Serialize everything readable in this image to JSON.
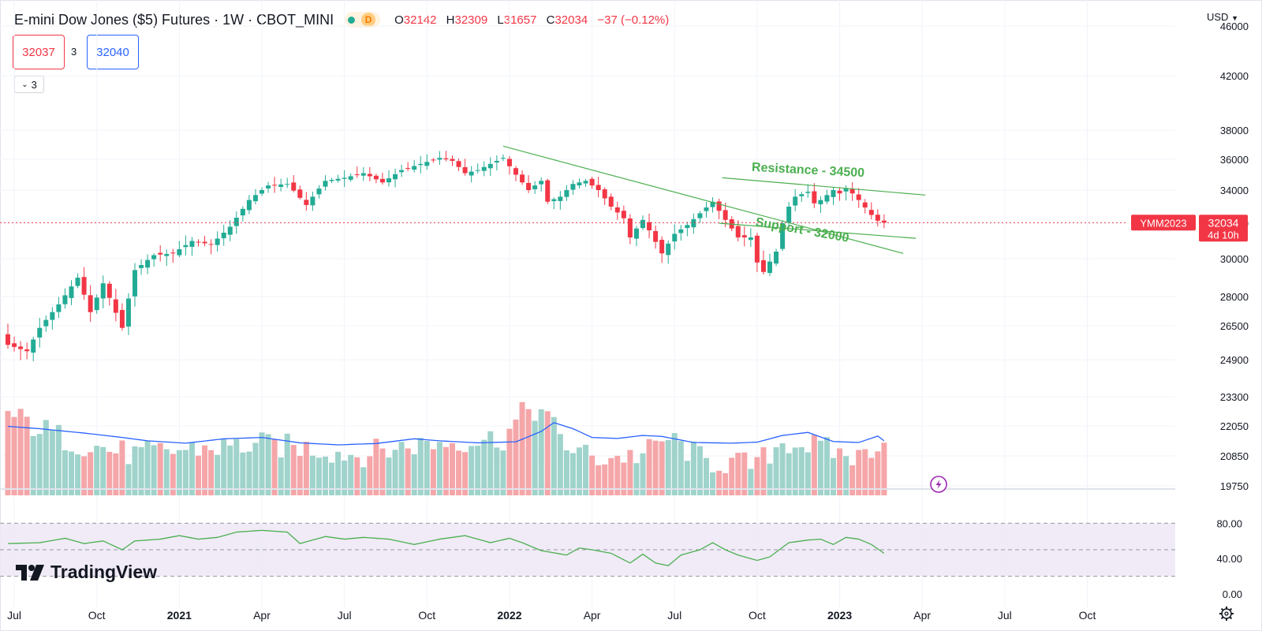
{
  "header": {
    "title": "E-mini Dow Jones ($5) Futures · 1W · CBOT_MINI",
    "status_badge": "D",
    "ohlc": [
      {
        "key": "O",
        "value": "32142"
      },
      {
        "key": "H",
        "value": "32309"
      },
      {
        "key": "L",
        "value": "31657"
      },
      {
        "key": "C",
        "value": "32034"
      },
      {
        "key": "",
        "value": "−37 (−0.12%)"
      }
    ],
    "sell_price": "32037",
    "spread": "3",
    "buy_price": "32040",
    "indicators_toggle": "3"
  },
  "currency": "USD",
  "brand": {
    "name": "TradingView"
  },
  "colors": {
    "up": "#22ab94",
    "down": "#f23645",
    "up_vol": "#9fd3cb",
    "down_vol": "#f5a6a9",
    "ma": "#2962ff",
    "trend": "#4caf50",
    "rsi": "#4caf50"
  },
  "price_label": {
    "symbol": "YMM2023",
    "price": "32034",
    "countdown": "4d 10h"
  },
  "chart_data": [
    {
      "type": "candlestick",
      "title": "E-mini Dow Jones ($5) Futures",
      "timeframe": "1W",
      "y_ticks": [
        19750,
        20850,
        22050,
        23300,
        24900,
        26500,
        28000,
        30000,
        32000,
        34000,
        36000,
        38000,
        42000,
        46000
      ],
      "y_tick_labels": [
        "19750",
        "20850",
        "22050",
        "23300",
        "24900",
        "26500",
        "28000",
        "30000",
        "32000",
        "34000",
        "36000",
        "38000",
        "42000",
        "46000"
      ],
      "x_ticks": [
        {
          "label": "Jul",
          "i": 1
        },
        {
          "label": "Oct",
          "i": 14
        },
        {
          "label": "2021",
          "i": 27,
          "bold": true
        },
        {
          "label": "Apr",
          "i": 40
        },
        {
          "label": "Jul",
          "i": 53
        },
        {
          "label": "Oct",
          "i": 66
        },
        {
          "label": "2022",
          "i": 79,
          "bold": true
        },
        {
          "label": "Apr",
          "i": 92
        },
        {
          "label": "Jul",
          "i": 105
        },
        {
          "label": "Oct",
          "i": 118
        },
        {
          "label": "2023",
          "i": 131,
          "bold": true
        },
        {
          "label": "Apr",
          "i": 144
        },
        {
          "label": "Jul",
          "i": 157
        },
        {
          "label": "Oct",
          "i": 170
        }
      ],
      "close_anchors": [
        [
          0,
          25600
        ],
        [
          3,
          25300
        ],
        [
          5,
          26400
        ],
        [
          8,
          27600
        ],
        [
          11,
          29000
        ],
        [
          13,
          27200
        ],
        [
          15,
          28700
        ],
        [
          18,
          26400
        ],
        [
          20,
          29400
        ],
        [
          23,
          30200
        ],
        [
          26,
          30300
        ],
        [
          29,
          31000
        ],
        [
          32,
          30800
        ],
        [
          35,
          31800
        ],
        [
          38,
          33400
        ],
        [
          41,
          34300
        ],
        [
          44,
          34400
        ],
        [
          47,
          33100
        ],
        [
          50,
          34600
        ],
        [
          53,
          34800
        ],
        [
          56,
          35100
        ],
        [
          59,
          34500
        ],
        [
          62,
          35300
        ],
        [
          65,
          35700
        ],
        [
          68,
          36100
        ],
        [
          70,
          35900
        ],
        [
          72,
          35100
        ],
        [
          74,
          35300
        ],
        [
          76,
          35700
        ],
        [
          78,
          36100
        ],
        [
          80,
          35000
        ],
        [
          82,
          34000
        ],
        [
          84,
          34600
        ],
        [
          85,
          33300
        ],
        [
          87,
          33600
        ],
        [
          89,
          34400
        ],
        [
          91,
          34600
        ],
        [
          93,
          34000
        ],
        [
          95,
          33000
        ],
        [
          97,
          32300
        ],
        [
          98,
          31200
        ],
        [
          100,
          32200
        ],
        [
          101,
          31600
        ],
        [
          103,
          30300
        ],
        [
          105,
          31400
        ],
        [
          107,
          31900
        ],
        [
          109,
          32600
        ],
        [
          111,
          33300
        ],
        [
          113,
          32200
        ],
        [
          115,
          31200
        ],
        [
          117,
          31200
        ],
        [
          118,
          29800
        ],
        [
          119,
          29300
        ],
        [
          121,
          30400
        ],
        [
          122,
          32000
        ],
        [
          123,
          33000
        ],
        [
          124,
          33600
        ],
        [
          126,
          33900
        ],
        [
          127,
          33200
        ],
        [
          128,
          33400
        ],
        [
          130,
          34000
        ],
        [
          131,
          33800
        ],
        [
          132,
          34100
        ],
        [
          133,
          33800
        ],
        [
          134,
          33400
        ],
        [
          136,
          32500
        ],
        [
          137,
          32150
        ],
        [
          138,
          32034
        ]
      ],
      "volume_anchors": [
        [
          0,
          24
        ],
        [
          10,
          16
        ],
        [
          20,
          12
        ],
        [
          30,
          14
        ],
        [
          40,
          15
        ],
        [
          48,
          14
        ],
        [
          55,
          12
        ],
        [
          64,
          15
        ],
        [
          70,
          16
        ],
        [
          78,
          17
        ],
        [
          82,
          26
        ],
        [
          84,
          25
        ],
        [
          88,
          15
        ],
        [
          92,
          11
        ],
        [
          100,
          12
        ],
        [
          104,
          17
        ],
        [
          110,
          10
        ],
        [
          118,
          9
        ],
        [
          122,
          16
        ],
        [
          126,
          15
        ],
        [
          132,
          12
        ],
        [
          134,
          11
        ],
        [
          137,
          16
        ]
      ],
      "ma_anchors": [
        [
          0,
          20.5
        ],
        [
          5,
          19.8
        ],
        [
          12,
          18.5
        ],
        [
          18,
          17.2
        ],
        [
          22,
          16.2
        ],
        [
          28,
          15.5
        ],
        [
          34,
          16.8
        ],
        [
          40,
          17.2
        ],
        [
          46,
          15.6
        ],
        [
          52,
          15.0
        ],
        [
          58,
          15.4
        ],
        [
          64,
          16.8
        ],
        [
          68,
          16.2
        ],
        [
          74,
          15.6
        ],
        [
          80,
          15.9
        ],
        [
          84,
          19.0
        ],
        [
          86,
          21.6
        ],
        [
          89,
          19.8
        ],
        [
          92,
          17.2
        ],
        [
          96,
          16.9
        ],
        [
          100,
          17.8
        ],
        [
          103,
          17.5
        ],
        [
          108,
          15.7
        ],
        [
          114,
          15.5
        ],
        [
          118,
          15.8
        ],
        [
          122,
          17.8
        ],
        [
          126,
          18.7
        ],
        [
          130,
          16.0
        ],
        [
          134,
          15.7
        ],
        [
          137,
          17.6
        ],
        [
          138,
          16.2
        ]
      ],
      "volume_max": 30,
      "trendlines": [
        {
          "name": "Resistance - 34500",
          "p1": [
            112.5,
            34800
          ],
          "p2": [
            144.5,
            33700
          ]
        },
        {
          "name": "Support - 32000",
          "p1": [
            78,
            36900
          ],
          "p2": [
            141,
            30300
          ]
        },
        {
          "name": "",
          "p1": [
            112,
            32000
          ],
          "p2": [
            143,
            31150
          ]
        }
      ],
      "annotations": [
        {
          "text": "Resistance - 34500",
          "at": [
            126,
            35050
          ],
          "rotate": 3
        },
        {
          "text": "Support - 32000",
          "at": [
            125,
            31400
          ],
          "rotate": 10
        }
      ],
      "last_price": 32034
    },
    {
      "type": "line",
      "name": "RSI",
      "y_ticks": [
        0,
        40,
        80
      ],
      "y_tick_labels": [
        "0.00",
        "40.00",
        "80.00"
      ],
      "levels": [
        80,
        50,
        20
      ],
      "rsi_anchors": [
        [
          0,
          57
        ],
        [
          5,
          58
        ],
        [
          9,
          63
        ],
        [
          12,
          57
        ],
        [
          15,
          60
        ],
        [
          18,
          50
        ],
        [
          20,
          60
        ],
        [
          24,
          62
        ],
        [
          27,
          66
        ],
        [
          30,
          62
        ],
        [
          33,
          64
        ],
        [
          36,
          70
        ],
        [
          40,
          72
        ],
        [
          44,
          70
        ],
        [
          46,
          57
        ],
        [
          50,
          65
        ],
        [
          53,
          62
        ],
        [
          56,
          64
        ],
        [
          60,
          62
        ],
        [
          64,
          56
        ],
        [
          68,
          62
        ],
        [
          72,
          66
        ],
        [
          76,
          58
        ],
        [
          79,
          63
        ],
        [
          81,
          58
        ],
        [
          84,
          49
        ],
        [
          88,
          44
        ],
        [
          90,
          52
        ],
        [
          92,
          50
        ],
        [
          95,
          46
        ],
        [
          98,
          35
        ],
        [
          100,
          45
        ],
        [
          102,
          35
        ],
        [
          104,
          32
        ],
        [
          106,
          44
        ],
        [
          109,
          50
        ],
        [
          111,
          58
        ],
        [
          113,
          50
        ],
        [
          115,
          44
        ],
        [
          117,
          40
        ],
        [
          118,
          38
        ],
        [
          120,
          42
        ],
        [
          123,
          58
        ],
        [
          126,
          61
        ],
        [
          128,
          62
        ],
        [
          130,
          56
        ],
        [
          132,
          64
        ],
        [
          134,
          62
        ],
        [
          136,
          56
        ],
        [
          138,
          46
        ]
      ]
    }
  ]
}
